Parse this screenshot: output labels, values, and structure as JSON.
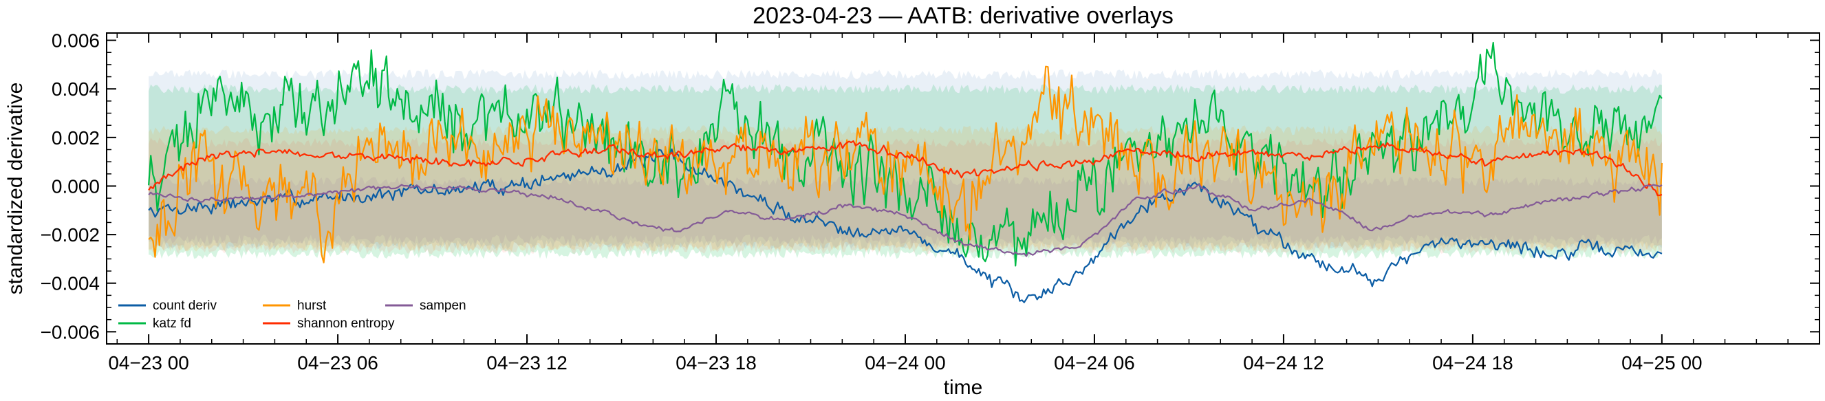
{
  "chart_data": {
    "type": "line",
    "title": "2023-04-23 — AATB: derivative overlays",
    "xlabel": "time",
    "ylabel": "standardized derivative",
    "x_range": [
      "2023-04-22T22:40",
      "2023-04-25T05:00"
    ],
    "ylim": [
      -0.0065,
      0.0063
    ],
    "x_ticks": [
      {
        "time": "2023-04-23T00:00",
        "label": "04−23 00"
      },
      {
        "time": "2023-04-23T06:00",
        "label": "04−23 06"
      },
      {
        "time": "2023-04-23T12:00",
        "label": "04−23 12"
      },
      {
        "time": "2023-04-23T18:00",
        "label": "04−23 18"
      },
      {
        "time": "2023-04-24T00:00",
        "label": "04−24 00"
      },
      {
        "time": "2023-04-24T06:00",
        "label": "04−24 06"
      },
      {
        "time": "2023-04-24T12:00",
        "label": "04−24 12"
      },
      {
        "time": "2023-04-24T18:00",
        "label": "04−24 18"
      },
      {
        "time": "2023-04-25T00:00",
        "label": "04−25 00"
      }
    ],
    "y_ticks": [
      {
        "value": 0.006,
        "label": "0.006"
      },
      {
        "value": 0.004,
        "label": "0.004"
      },
      {
        "value": 0.002,
        "label": "0.002"
      },
      {
        "value": 0.0,
        "label": "0.000"
      },
      {
        "value": -0.002,
        "label": "−0.002"
      },
      {
        "value": -0.004,
        "label": "−0.004"
      },
      {
        "value": -0.006,
        "label": "−0.006"
      }
    ],
    "grid": false,
    "legend_position": "lower-left",
    "x": [
      "2023-04-23T00:00",
      "2023-04-23T02:00",
      "2023-04-23T04:00",
      "2023-04-23T06:00",
      "2023-04-23T08:00",
      "2023-04-23T10:00",
      "2023-04-23T12:00",
      "2023-04-23T14:00",
      "2023-04-23T16:00",
      "2023-04-23T18:00",
      "2023-04-23T20:00",
      "2023-04-23T22:00",
      "2023-04-24T00:00",
      "2023-04-24T02:00",
      "2023-04-24T03:00",
      "2023-04-24T04:00",
      "2023-04-24T05:00",
      "2023-04-24T06:00",
      "2023-04-24T08:00",
      "2023-04-24T10:00",
      "2023-04-24T12:00",
      "2023-04-24T14:00",
      "2023-04-24T16:00",
      "2023-04-24T18:00",
      "2023-04-24T20:00",
      "2023-04-24T22:00",
      "2023-04-25T00:00"
    ],
    "series": [
      {
        "name": "count deriv",
        "color": "#0c5da5",
        "values": [
          -0.001,
          -0.0008,
          -0.0006,
          -0.0005,
          -0.0003,
          -0.0002,
          0.0,
          0.0003,
          0.0008,
          0.0012,
          0.0,
          -0.0012,
          -0.0017,
          -0.0019,
          -0.003,
          -0.0048,
          -0.0036,
          -0.0008,
          0.0,
          -0.0015,
          -0.003,
          -0.0038,
          -0.0025,
          -0.0022,
          -0.0028,
          -0.0026,
          -0.0028
        ]
      },
      {
        "name": "katz fd",
        "color": "#00b945",
        "values": [
          0.0002,
          0.0035,
          0.0028,
          0.0038,
          0.004,
          0.003,
          0.0025,
          0.0032,
          0.0015,
          0.001,
          0.003,
          0.0012,
          0.0006,
          0.0005,
          -0.0018,
          -0.002,
          -0.0002,
          0.001,
          0.0028,
          0.0008,
          0.0,
          0.001,
          0.002,
          0.0048,
          0.0025,
          0.002,
          0.0034
        ]
      },
      {
        "name": "hurst",
        "color": "#ff9500",
        "values": [
          -0.0018,
          0.0008,
          0.0,
          -0.001,
          0.0015,
          0.002,
          0.0012,
          0.0025,
          0.0018,
          0.001,
          0.0015,
          0.0008,
          0.0018,
          0.0005,
          -0.001,
          0.0025,
          0.0032,
          0.0005,
          0.0012,
          0.001,
          -0.0015,
          0.0018,
          0.002,
          0.0005,
          0.003,
          0.0015,
          0.0008
        ]
      },
      {
        "name": "shannon entropy",
        "color": "#ff2c00",
        "values": [
          -0.0001,
          0.0012,
          0.0014,
          0.0012,
          0.0013,
          0.001,
          0.0009,
          0.0013,
          0.0015,
          0.0012,
          0.0016,
          0.0015,
          0.0017,
          0.0013,
          0.0005,
          0.0008,
          0.0009,
          0.0016,
          0.0012,
          0.0014,
          0.0013,
          0.0016,
          0.0014,
          0.0009,
          0.0015,
          0.0012,
          -0.0004
        ]
      },
      {
        "name": "sampen",
        "color": "#845b97",
        "values": [
          -0.0003,
          -0.0006,
          -0.0005,
          -0.0003,
          -0.0001,
          0.0,
          -0.0002,
          -0.0005,
          -0.0012,
          -0.0019,
          -0.001,
          -0.0014,
          -0.0008,
          -0.0012,
          -0.0024,
          -0.0028,
          -0.0025,
          -0.0005,
          0.0,
          -0.001,
          -0.0005,
          -0.0018,
          -0.001,
          -0.0012,
          -0.0006,
          -0.0003,
          0.0
        ]
      }
    ],
    "bands": [
      {
        "name": "katz fd band",
        "color": "#00b945",
        "opacity": 0.16,
        "upper": 0.004,
        "lower": -0.0028
      },
      {
        "name": "count deriv band",
        "color": "#0c5da5",
        "opacity": 0.09,
        "upper": 0.0046,
        "lower": -0.0024
      },
      {
        "name": "hurst band",
        "color": "#ff9500",
        "opacity": 0.13,
        "upper": 0.0023,
        "lower": -0.0025
      },
      {
        "name": "shannon entropy band",
        "color": "#ff2c00",
        "opacity": 0.08,
        "upper": 0.0018,
        "lower": -0.0026
      },
      {
        "name": "sampen band",
        "color": "#845b97",
        "opacity": 0.1,
        "upper": 0.0002,
        "lower": -0.0022
      }
    ],
    "legend_columns": [
      [
        "count deriv",
        "katz fd"
      ],
      [
        "hurst",
        "shannon entropy"
      ],
      [
        "sampen"
      ]
    ]
  }
}
